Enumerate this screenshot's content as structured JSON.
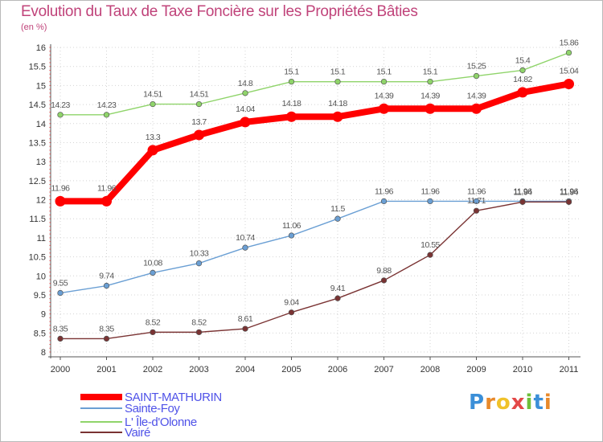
{
  "chart_data": {
    "type": "line",
    "title": "Evolution du Taux de Taxe Foncière sur les Propriétés Bâties",
    "ylabel": "(en %)",
    "xlabel": "",
    "categories": [
      "2000",
      "2001",
      "2002",
      "2003",
      "2004",
      "2005",
      "2006",
      "2007",
      "2008",
      "2009",
      "2010",
      "2011"
    ],
    "ylim": [
      8,
      16
    ],
    "yticks": [
      "8",
      "8.5",
      "9",
      "9.5",
      "10",
      "10.5",
      "11",
      "11.5",
      "12",
      "12.5",
      "13",
      "13.5",
      "14",
      "14.5",
      "15",
      "15.5",
      "16"
    ],
    "series": [
      {
        "name": "SAINT-MATHURIN",
        "color": "#ff0000",
        "emphasis": true,
        "values": [
          11.96,
          11.96,
          13.3,
          13.7,
          14.04,
          14.18,
          14.18,
          14.39,
          14.39,
          14.39,
          14.82,
          15.04
        ],
        "labels": [
          "11.96",
          "11.96",
          "13.3",
          "13.7",
          "14.04",
          "14.18",
          "14.18",
          "14.39",
          "14.39",
          "14.39",
          "14.82",
          "15.04"
        ]
      },
      {
        "name": "Sainte-Foy",
        "color": "#6a9fd4",
        "values": [
          9.55,
          9.74,
          10.08,
          10.33,
          10.74,
          11.06,
          11.5,
          11.96,
          11.96,
          11.96,
          11.96,
          11.96
        ],
        "labels": [
          "9.55",
          "9.74",
          "10.08",
          "10.33",
          "10.74",
          "11.06",
          "11.5",
          "11.96",
          "11.96",
          "11.96",
          "11.96",
          "11.96"
        ]
      },
      {
        "name": "L' Île-d'Olonne",
        "color": "#8fd46a",
        "values": [
          14.23,
          14.23,
          14.51,
          14.51,
          14.8,
          15.1,
          15.1,
          15.1,
          15.1,
          15.25,
          15.4,
          15.86
        ],
        "labels": [
          "14.23",
          "14.23",
          "14.51",
          "14.51",
          "14.8",
          "15.1",
          "15.1",
          "15.1",
          "15.1",
          "15.25",
          "15.4",
          "15.86"
        ]
      },
      {
        "name": "Vairé",
        "color": "#7a3333",
        "values": [
          8.35,
          8.35,
          8.52,
          8.52,
          8.61,
          9.04,
          9.41,
          9.88,
          10.55,
          11.71,
          11.94,
          11.94
        ],
        "labels": [
          "8.35",
          "8.35",
          "8.52",
          "8.52",
          "8.61",
          "9.04",
          "9.41",
          "9.88",
          "10.55",
          "11.71",
          "11.94",
          "11.94"
        ]
      }
    ]
  },
  "brand": {
    "text": "Proxiti",
    "letter_colors": [
      "#3b8fd8",
      "#e8892a",
      "#f0c22a",
      "#e34848",
      "#6fbf3a",
      "#3b8fd8",
      "#e8892a"
    ]
  }
}
